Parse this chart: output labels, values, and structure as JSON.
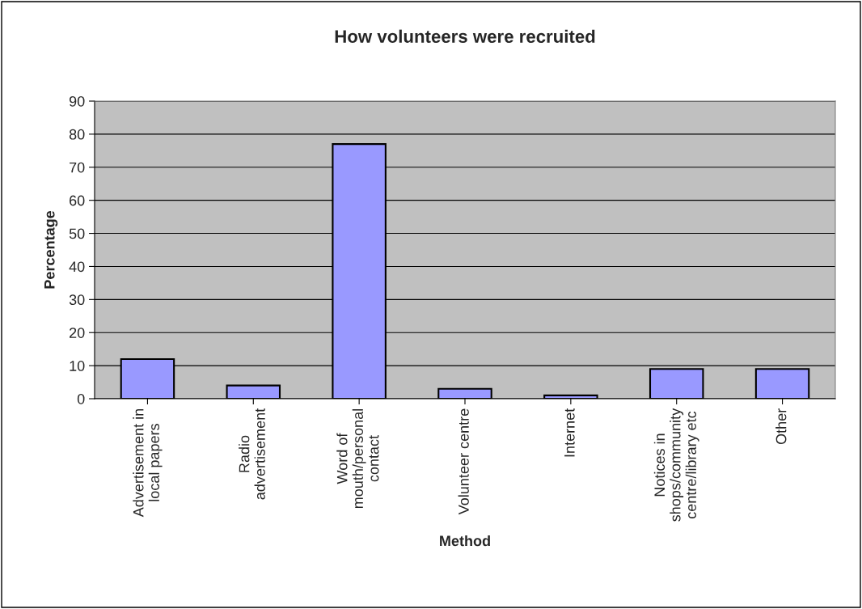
{
  "chart_data": {
    "type": "bar",
    "title": "How volunteers were recruited",
    "xlabel": "Method",
    "ylabel": "Percentage",
    "categories": [
      "Advertisement in\nlocal papers",
      "Radio\nadvertisement",
      "Word of\nmouth/personal\ncontact",
      "Volunteer centre",
      "Internet",
      "Notices in\nshops/community\ncentre/library etc",
      "Other"
    ],
    "values": [
      12,
      4,
      77,
      3,
      1,
      9,
      9
    ],
    "color": "#9999ff",
    "ylim": [
      0,
      90
    ],
    "yticks": [
      0,
      10,
      20,
      30,
      40,
      50,
      60,
      70,
      80,
      90
    ],
    "grid": "y",
    "legend": false
  }
}
